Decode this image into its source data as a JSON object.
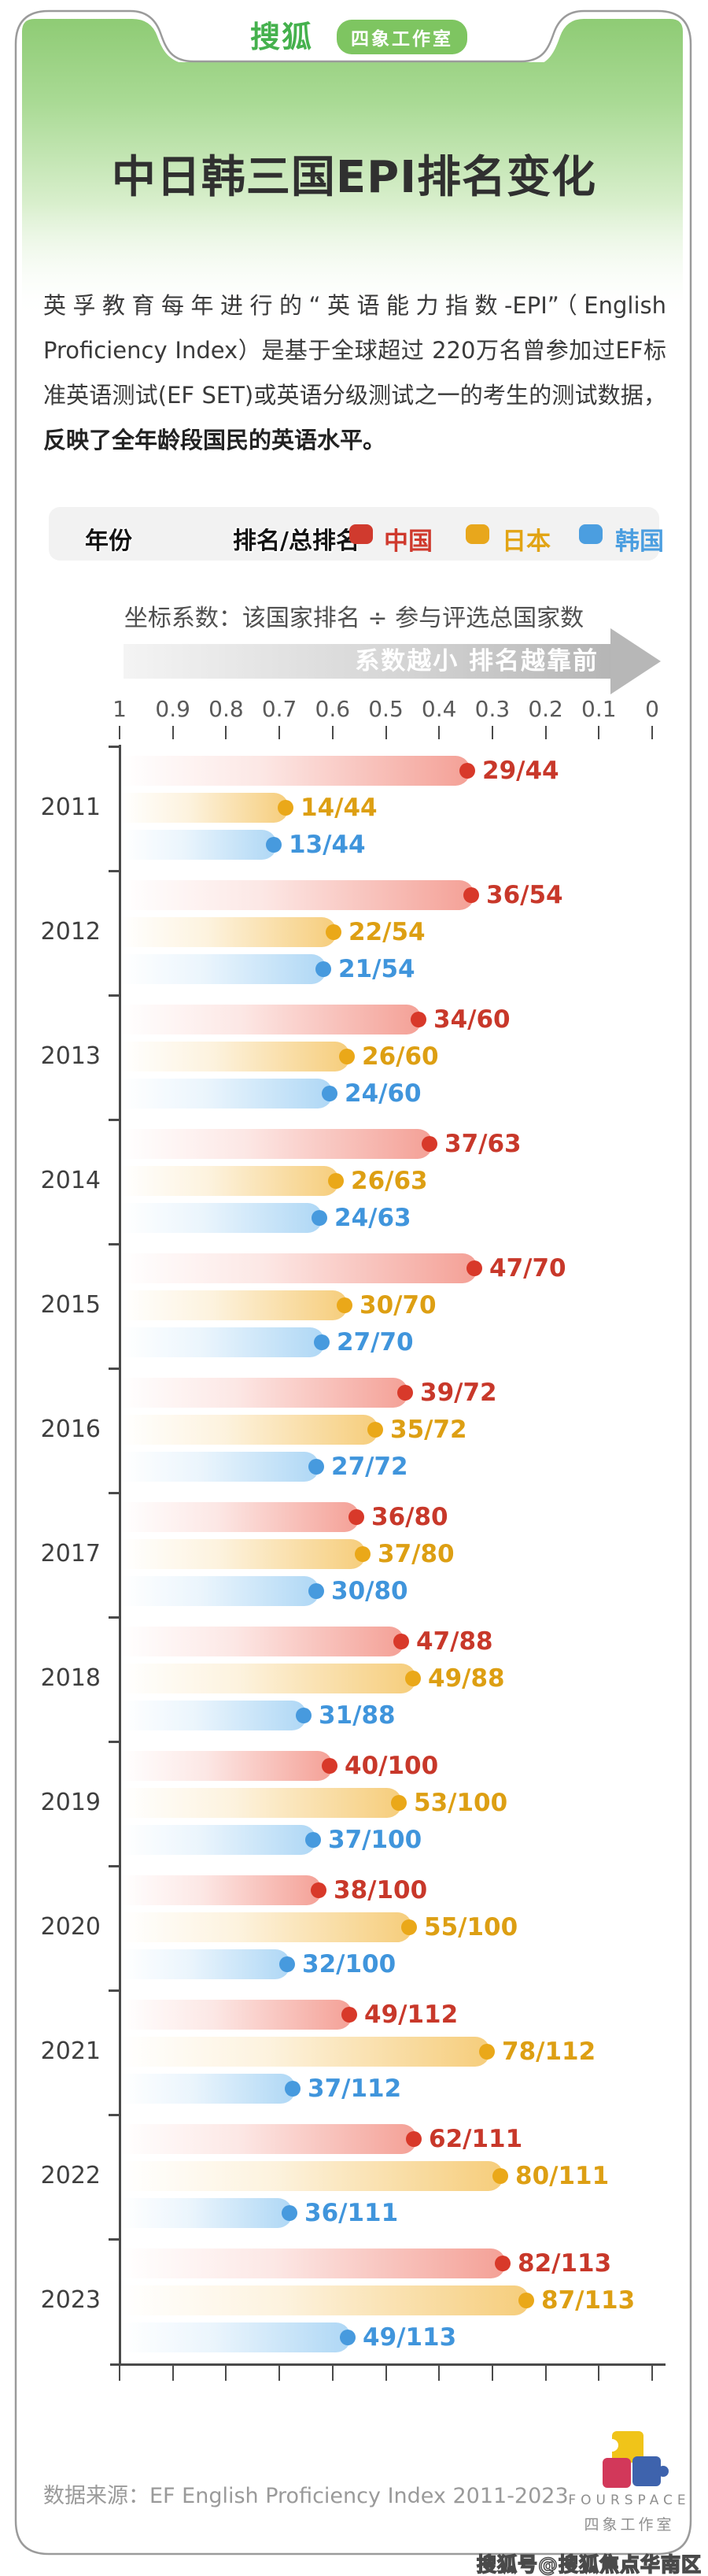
{
  "header": {
    "site_logo": "搜狐",
    "studio_badge": "四象工作室"
  },
  "title": "中日韩三国EPI排名变化",
  "description": {
    "normal": "英孚教育每年进行的“英语能力指数-EPI”（English Proficiency Index）是基于全球超过 220万名曾参加过EF标准英语测试(EF SET)或英语分级测试之一的考生的测试数据，",
    "bold": "反映了全年龄段国民的英语水平。"
  },
  "legend": {
    "year_label": "年份",
    "rank_label": "排名/总排名",
    "items": [
      {
        "name": "中国",
        "color": "#d03a2e"
      },
      {
        "name": "日本",
        "color": "#e8a71c"
      },
      {
        "name": "韩国",
        "color": "#4b9ee0"
      }
    ]
  },
  "axis_note": "坐标系数：该国家排名 ÷ 参与评选总国家数",
  "arrow_note": "系数越小 排名越靠前",
  "colors": {
    "header_green": "#96d07e",
    "china_bar": "#f4a096",
    "china_dot": "#d8392a",
    "china_text": "#c8382a",
    "japan_bar": "#f6cd7b",
    "japan_dot": "#eaa819",
    "japan_text": "#dd9f13",
    "korea_bar": "#aed7f5",
    "korea_dot": "#479ade",
    "korea_text": "#4095dc"
  },
  "chart_data": {
    "type": "bar",
    "orientation": "horizontal",
    "title": "中日韩三国EPI排名变化",
    "x_axis": {
      "label": "坐标系数：该国家排名 ÷ 参与评选总国家数",
      "ticks": [
        "1",
        "0.9",
        "0.8",
        "0.7",
        "0.6",
        "0.5",
        "0.4",
        "0.3",
        "0.2",
        "0.1",
        "0"
      ],
      "range": [
        1,
        0
      ],
      "direction": "reversed",
      "note": "系数越小 排名越靠前"
    },
    "series_names": [
      "中国",
      "日本",
      "韩国"
    ],
    "years": [
      {
        "year": "2011",
        "values": [
          {
            "series": "china",
            "rank": 29,
            "total": 44,
            "label": "29/44"
          },
          {
            "series": "japan",
            "rank": 14,
            "total": 44,
            "label": "14/44"
          },
          {
            "series": "korea",
            "rank": 13,
            "total": 44,
            "label": "13/44"
          }
        ]
      },
      {
        "year": "2012",
        "values": [
          {
            "series": "china",
            "rank": 36,
            "total": 54,
            "label": "36/54"
          },
          {
            "series": "japan",
            "rank": 22,
            "total": 54,
            "label": "22/54"
          },
          {
            "series": "korea",
            "rank": 21,
            "total": 54,
            "label": "21/54"
          }
        ]
      },
      {
        "year": "2013",
        "values": [
          {
            "series": "china",
            "rank": 34,
            "total": 60,
            "label": "34/60"
          },
          {
            "series": "japan",
            "rank": 26,
            "total": 60,
            "label": "26/60"
          },
          {
            "series": "korea",
            "rank": 24,
            "total": 60,
            "label": "24/60"
          }
        ]
      },
      {
        "year": "2014",
        "values": [
          {
            "series": "china",
            "rank": 37,
            "total": 63,
            "label": "37/63"
          },
          {
            "series": "japan",
            "rank": 26,
            "total": 63,
            "label": "26/63"
          },
          {
            "series": "korea",
            "rank": 24,
            "total": 63,
            "label": "24/63"
          }
        ]
      },
      {
        "year": "2015",
        "values": [
          {
            "series": "china",
            "rank": 47,
            "total": 70,
            "label": "47/70"
          },
          {
            "series": "japan",
            "rank": 30,
            "total": 70,
            "label": "30/70"
          },
          {
            "series": "korea",
            "rank": 27,
            "total": 70,
            "label": "27/70"
          }
        ]
      },
      {
        "year": "2016",
        "values": [
          {
            "series": "china",
            "rank": 39,
            "total": 72,
            "label": "39/72"
          },
          {
            "series": "japan",
            "rank": 35,
            "total": 72,
            "label": "35/72"
          },
          {
            "series": "korea",
            "rank": 27,
            "total": 72,
            "label": "27/72"
          }
        ]
      },
      {
        "year": "2017",
        "values": [
          {
            "series": "china",
            "rank": 36,
            "total": 80,
            "label": "36/80"
          },
          {
            "series": "japan",
            "rank": 37,
            "total": 80,
            "label": "37/80"
          },
          {
            "series": "korea",
            "rank": 30,
            "total": 80,
            "label": "30/80"
          }
        ]
      },
      {
        "year": "2018",
        "values": [
          {
            "series": "china",
            "rank": 47,
            "total": 88,
            "label": "47/88"
          },
          {
            "series": "japan",
            "rank": 49,
            "total": 88,
            "label": "49/88"
          },
          {
            "series": "korea",
            "rank": 31,
            "total": 88,
            "label": "31/88"
          }
        ]
      },
      {
        "year": "2019",
        "values": [
          {
            "series": "china",
            "rank": 40,
            "total": 100,
            "label": "40/100"
          },
          {
            "series": "japan",
            "rank": 53,
            "total": 100,
            "label": "53/100"
          },
          {
            "series": "korea",
            "rank": 37,
            "total": 100,
            "label": "37/100"
          }
        ]
      },
      {
        "year": "2020",
        "values": [
          {
            "series": "china",
            "rank": 38,
            "total": 100,
            "label": "38/100"
          },
          {
            "series": "japan",
            "rank": 55,
            "total": 100,
            "label": "55/100"
          },
          {
            "series": "korea",
            "rank": 32,
            "total": 100,
            "label": "32/100"
          }
        ]
      },
      {
        "year": "2021",
        "values": [
          {
            "series": "china",
            "rank": 49,
            "total": 112,
            "label": "49/112"
          },
          {
            "series": "japan",
            "rank": 78,
            "total": 112,
            "label": "78/112"
          },
          {
            "series": "korea",
            "rank": 37,
            "total": 112,
            "label": "37/112"
          }
        ]
      },
      {
        "year": "2022",
        "values": [
          {
            "series": "china",
            "rank": 62,
            "total": 111,
            "label": "62/111"
          },
          {
            "series": "japan",
            "rank": 80,
            "total": 111,
            "label": "80/111"
          },
          {
            "series": "korea",
            "rank": 36,
            "total": 111,
            "label": "36/111"
          }
        ]
      },
      {
        "year": "2023",
        "values": [
          {
            "series": "china",
            "rank": 82,
            "total": 113,
            "label": "82/113"
          },
          {
            "series": "japan",
            "rank": 87,
            "total": 113,
            "label": "87/113"
          },
          {
            "series": "korea",
            "rank": 49,
            "total": 113,
            "label": "49/113"
          }
        ]
      }
    ]
  },
  "footer": {
    "source": "数据来源：EF English Proficiency Index 2011-2023",
    "brand_en": "FOURSPACE",
    "brand_cn": "四象工作室"
  },
  "watermark": "搜狐号@搜狐焦点华南区"
}
